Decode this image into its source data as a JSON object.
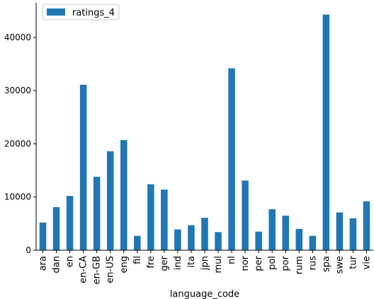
{
  "chart_data": {
    "type": "bar",
    "xlabel": "language_code",
    "ylabel": "",
    "ylim": [
      0,
      46500
    ],
    "yticks": [
      0,
      10000,
      20000,
      30000,
      40000
    ],
    "categories": [
      "ara",
      "dan",
      "en",
      "en-CA",
      "en-GB",
      "en-US",
      "eng",
      "fil",
      "fre",
      "ger",
      "ind",
      "ita",
      "jpn",
      "mul",
      "nl",
      "nor",
      "per",
      "pol",
      "por",
      "rum",
      "rus",
      "spa",
      "swe",
      "tur",
      "vie"
    ],
    "series": [
      {
        "name": "ratings_4",
        "color": "#1f77b4",
        "values": [
          5200,
          8100,
          10200,
          31100,
          13800,
          18600,
          20700,
          2700,
          12400,
          11400,
          3900,
          4700,
          6100,
          3400,
          34200,
          13100,
          3500,
          7700,
          6500,
          4000,
          2700,
          44300,
          7100,
          6000,
          9200
        ]
      }
    ],
    "legend": {
      "position": "top-left",
      "label": "ratings_4"
    },
    "grid": false
  }
}
